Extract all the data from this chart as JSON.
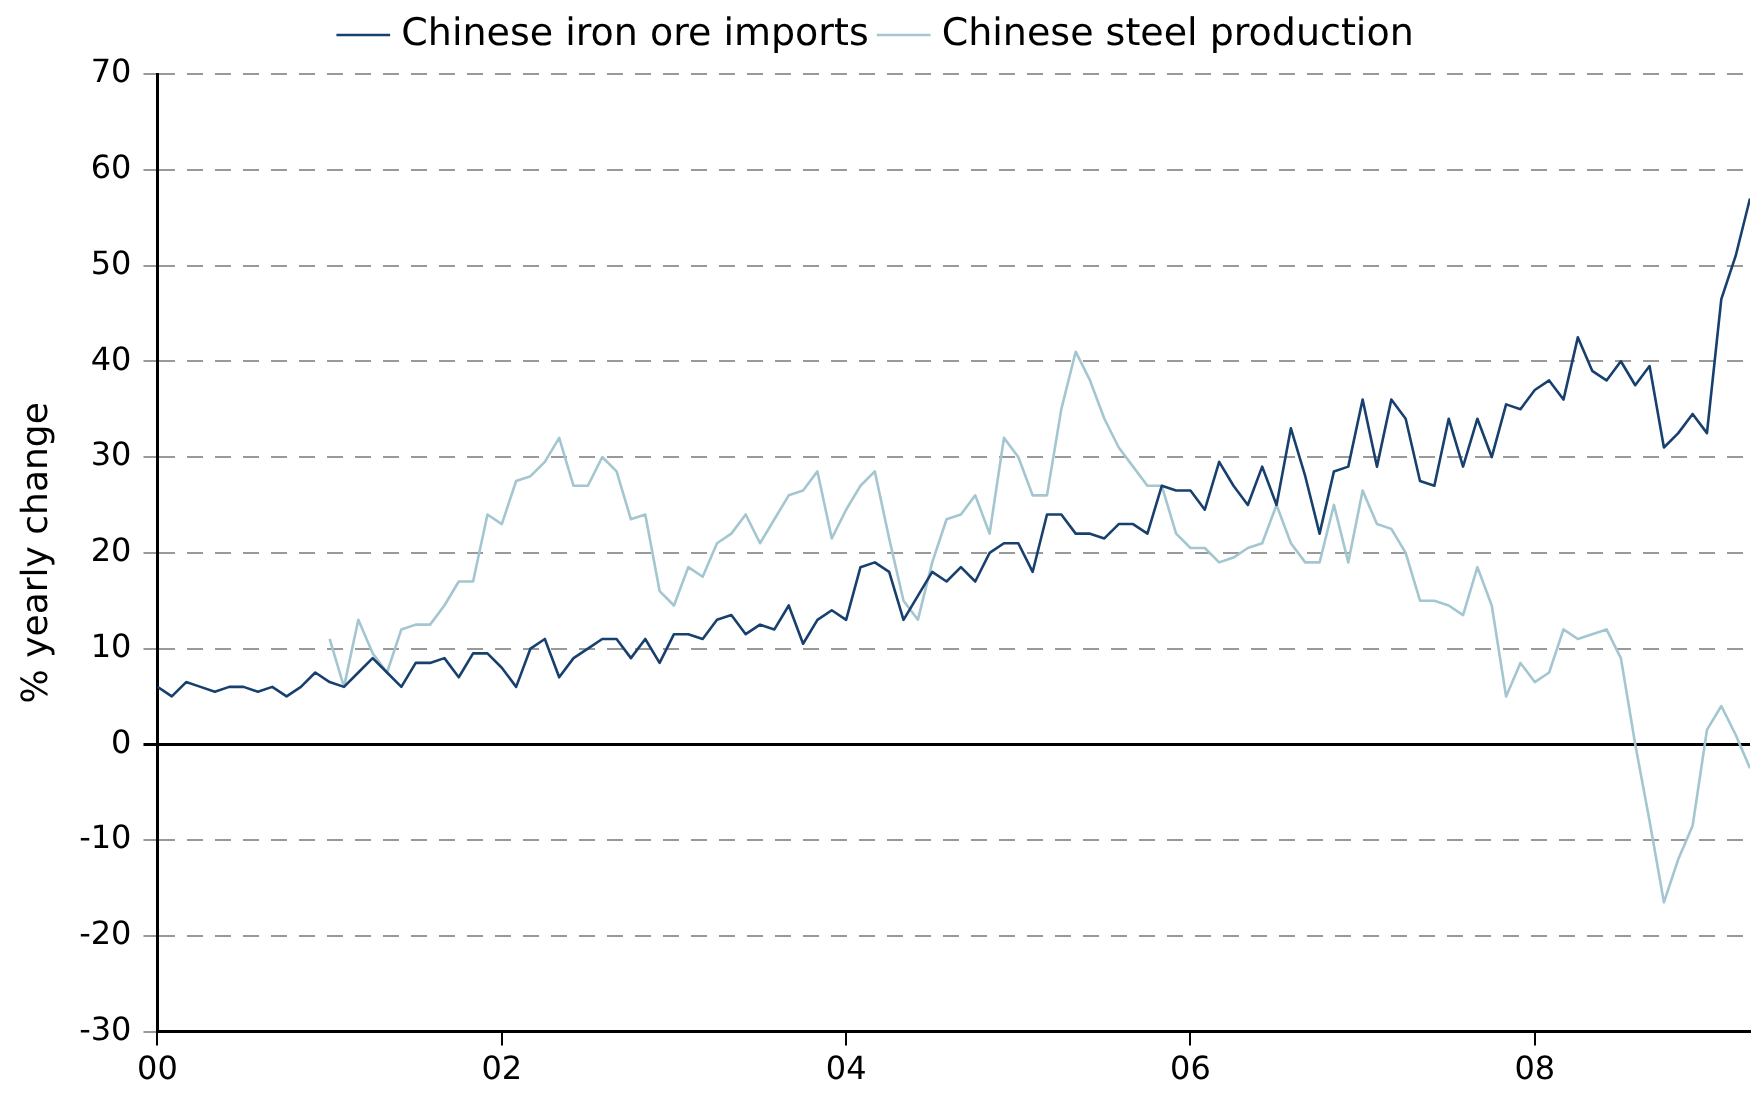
{
  "chart_data": {
    "type": "line",
    "ylabel": "% yearly change",
    "legend": "top",
    "grid": "y",
    "marker": "none",
    "line_style": "solid",
    "xlim": [
      "2000-01",
      "2009-04"
    ],
    "xticks": [
      {
        "value": "2000-01",
        "label": "00"
      },
      {
        "value": "2002-01",
        "label": "02"
      },
      {
        "value": "2004-01",
        "label": "04"
      },
      {
        "value": "2006-01",
        "label": "06"
      },
      {
        "value": "2008-01",
        "label": "08"
      }
    ],
    "ylim": [
      -30,
      70
    ],
    "yticks": [
      -30,
      -20,
      -10,
      0,
      10,
      20,
      30,
      40,
      50,
      60,
      70
    ],
    "x": [
      "2000-01",
      "2000-02",
      "2000-03",
      "2000-04",
      "2000-05",
      "2000-06",
      "2000-07",
      "2000-08",
      "2000-09",
      "2000-10",
      "2000-11",
      "2000-12",
      "2001-01",
      "2001-02",
      "2001-03",
      "2001-04",
      "2001-05",
      "2001-06",
      "2001-07",
      "2001-08",
      "2001-09",
      "2001-10",
      "2001-11",
      "2001-12",
      "2002-01",
      "2002-02",
      "2002-03",
      "2002-04",
      "2002-05",
      "2002-06",
      "2002-07",
      "2002-08",
      "2002-09",
      "2002-10",
      "2002-11",
      "2002-12",
      "2003-01",
      "2003-02",
      "2003-03",
      "2003-04",
      "2003-05",
      "2003-06",
      "2003-07",
      "2003-08",
      "2003-09",
      "2003-10",
      "2003-11",
      "2003-12",
      "2004-01",
      "2004-02",
      "2004-03",
      "2004-04",
      "2004-05",
      "2004-06",
      "2004-07",
      "2004-08",
      "2004-09",
      "2004-10",
      "2004-11",
      "2004-12",
      "2005-01",
      "2005-02",
      "2005-03",
      "2005-04",
      "2005-05",
      "2005-06",
      "2005-07",
      "2005-08",
      "2005-09",
      "2005-10",
      "2005-11",
      "2005-12",
      "2006-01",
      "2006-02",
      "2006-03",
      "2006-04",
      "2006-05",
      "2006-06",
      "2006-07",
      "2006-08",
      "2006-09",
      "2006-10",
      "2006-11",
      "2006-12",
      "2007-01",
      "2007-02",
      "2007-03",
      "2007-04",
      "2007-05",
      "2007-06",
      "2007-07",
      "2007-08",
      "2007-09",
      "2007-10",
      "2007-11",
      "2007-12",
      "2008-01",
      "2008-02",
      "2008-03",
      "2008-04",
      "2008-05",
      "2008-06",
      "2008-07",
      "2008-08",
      "2008-09",
      "2008-10",
      "2008-11",
      "2008-12",
      "2009-01",
      "2009-02",
      "2009-03",
      "2009-04"
    ],
    "series": [
      {
        "name": "Chinese iron ore imports",
        "color": "#17406e",
        "values": [
          6,
          5,
          6.5,
          6,
          5.5,
          6,
          6,
          5.5,
          6,
          5,
          6,
          7.5,
          6.5,
          6,
          7.5,
          9,
          7.5,
          6,
          8.5,
          8.5,
          9,
          7,
          9.5,
          9.5,
          8,
          6,
          10,
          11,
          7,
          9,
          10,
          11,
          11,
          9,
          11,
          8.5,
          11.5,
          11.5,
          11,
          13,
          13.5,
          11.5,
          12.5,
          12,
          14.5,
          10.5,
          13,
          14,
          13,
          18.5,
          19,
          18,
          13,
          15.5,
          18,
          17,
          18.5,
          17,
          20,
          21,
          21,
          18,
          24,
          24,
          22,
          22,
          21.5,
          23,
          23,
          22,
          27,
          26.5,
          26.5,
          24.5,
          29.5,
          27,
          25,
          29,
          25,
          33,
          28,
          22,
          28.5,
          29,
          36,
          29,
          36,
          34,
          27.5,
          27,
          34,
          29,
          34,
          30,
          35.5,
          35,
          37,
          38,
          36,
          42.5,
          39,
          38,
          40,
          37.5,
          39.5,
          31,
          32.5,
          34.5,
          32.5,
          46.5,
          51,
          57
        ]
      },
      {
        "name": "Chinese steel production",
        "color": "#a3c6d0",
        "x": [
          "2001-01",
          "2001-02",
          "2001-03",
          "2001-04",
          "2001-05",
          "2001-06",
          "2001-07",
          "2001-08",
          "2001-09",
          "2001-10",
          "2001-11",
          "2001-12",
          "2002-01",
          "2002-02",
          "2002-03",
          "2002-04",
          "2002-05",
          "2002-06",
          "2002-07",
          "2002-08",
          "2002-09",
          "2002-10",
          "2002-11",
          "2002-12",
          "2003-01",
          "2003-02",
          "2003-03",
          "2003-04",
          "2003-05",
          "2003-06",
          "2003-07",
          "2003-08",
          "2003-09",
          "2003-10",
          "2003-11",
          "2003-12",
          "2004-01",
          "2004-02",
          "2004-03",
          "2004-04",
          "2004-05",
          "2004-06",
          "2004-07",
          "2004-08",
          "2004-09",
          "2004-10",
          "2004-11",
          "2004-12",
          "2005-01",
          "2005-02",
          "2005-03",
          "2005-04",
          "2005-05",
          "2005-06",
          "2005-07",
          "2005-08",
          "2005-09",
          "2005-10",
          "2005-11",
          "2005-12",
          "2006-01",
          "2006-02",
          "2006-03",
          "2006-04",
          "2006-05",
          "2006-06",
          "2006-07",
          "2006-08",
          "2006-09",
          "2006-10",
          "2006-11",
          "2006-12",
          "2007-01",
          "2007-02",
          "2007-03",
          "2007-04",
          "2007-05",
          "2007-06",
          "2007-07",
          "2007-08",
          "2007-09",
          "2007-10",
          "2007-11",
          "2007-12",
          "2008-01",
          "2008-02",
          "2008-03",
          "2008-04",
          "2008-05",
          "2008-06",
          "2008-07",
          "2008-08",
          "2008-09",
          "2008-10",
          "2008-11",
          "2008-12",
          "2009-01",
          "2009-02",
          "2009-03",
          "2009-04"
        ],
        "values": [
          11,
          6,
          13,
          9.5,
          7.5,
          12,
          12.5,
          12.5,
          14.5,
          17,
          17,
          24,
          23,
          27.5,
          28,
          29.5,
          32,
          27,
          27,
          30,
          28.5,
          23.5,
          24,
          16,
          14.5,
          18.5,
          17.5,
          21,
          22,
          24,
          21,
          23.5,
          26,
          26.5,
          28.5,
          21.5,
          24.5,
          27,
          28.5,
          21.5,
          15,
          13,
          19,
          23.5,
          24,
          26,
          22,
          32,
          30,
          26,
          26,
          35,
          41,
          38,
          34,
          31,
          29,
          27,
          27,
          22,
          20.5,
          20.5,
          19,
          19.5,
          20.5,
          21,
          25,
          21,
          19,
          19,
          25,
          19,
          26.5,
          23,
          22.5,
          20,
          15,
          15,
          14.5,
          13.5,
          18.5,
          14.5,
          5,
          8.5,
          6.5,
          7.5,
          12,
          11,
          11.5,
          12,
          9,
          0,
          -8,
          -16.5,
          -12,
          -8.5,
          1.5,
          4,
          1,
          -2.5
        ]
      }
    ]
  }
}
